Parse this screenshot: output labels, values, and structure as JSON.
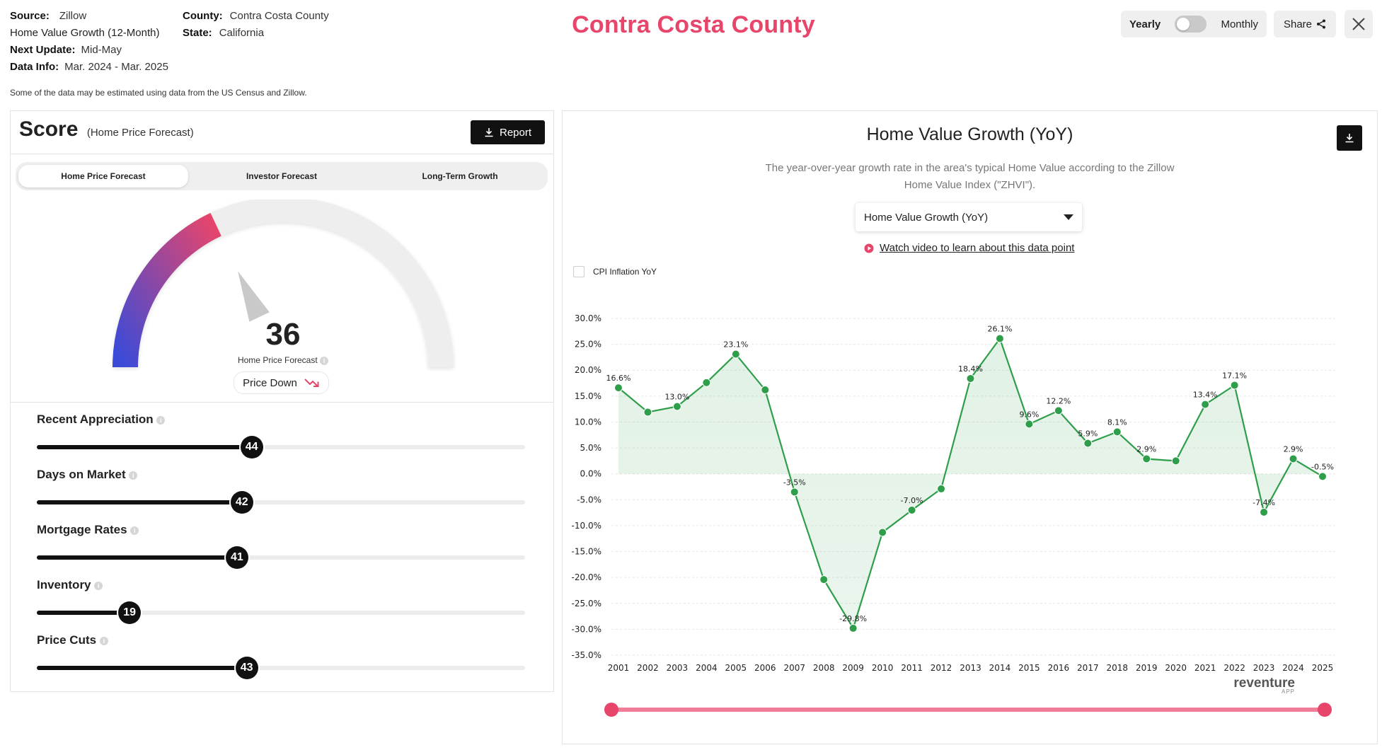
{
  "header": {
    "source_label": "Source:",
    "source_value": "Zillow",
    "metric_name": "Home Value Growth (12-Month)",
    "next_update_label": "Next Update:",
    "next_update_value": "Mid-May",
    "data_info_label": "Data Info:",
    "data_info_value": "Mar. 2024 - Mar. 2025",
    "county_label": "County:",
    "county_value": "Contra Costa County",
    "state_label": "State:",
    "state_value": "California",
    "title": "Contra Costa County",
    "disclaimer": "Some of the data may be estimated using data from the US Census and Zillow."
  },
  "controls": {
    "yearly_label": "Yearly",
    "monthly_label": "Monthly",
    "share_label": "Share",
    "icons": {
      "share": "share-icon",
      "close": "close-icon"
    }
  },
  "score_panel": {
    "title": "Score",
    "subtitle": "(Home Price Forecast)",
    "report_label": "Report",
    "tabs": [
      {
        "label": "Home Price Forecast",
        "active": true
      },
      {
        "label": "Investor Forecast",
        "active": false
      },
      {
        "label": "Long-Term Growth",
        "active": false
      }
    ],
    "gauge": {
      "value": "36",
      "caption": "Home Price Forecast",
      "status": "Price Down",
      "colors": {
        "start": "#3b4bd8",
        "end": "#e8456b",
        "track": "#eeeeee"
      }
    },
    "metrics": [
      {
        "label": "Recent Appreciation",
        "value": "44",
        "level": 0.44
      },
      {
        "label": "Days on Market",
        "value": "42",
        "level": 0.42
      },
      {
        "label": "Mortgage Rates",
        "value": "41",
        "level": 0.41
      },
      {
        "label": "Inventory",
        "value": "19",
        "level": 0.19
      },
      {
        "label": "Price Cuts",
        "value": "43",
        "level": 0.43
      }
    ]
  },
  "chart_panel": {
    "title": "Home Value Growth (YoY)",
    "description_line1": "The year-over-year growth rate in the area's typical Home Value according to the Zillow",
    "description_line2": "Home Value Index (\"ZHVI\").",
    "dropdown_value": "Home Value Growth (YoY)",
    "video_link": "Watch video to learn about this data point",
    "cpi_label": "CPI Inflation YoY",
    "brand": "reventure",
    "brand_sub": "APP",
    "accent_color": "#e8456b",
    "series_color": "#2e9e4a"
  },
  "chart_data": {
    "type": "line",
    "x": [
      "2001",
      "2002",
      "2003",
      "2004",
      "2005",
      "2006",
      "2007",
      "2008",
      "2009",
      "2010",
      "2011",
      "2012",
      "2013",
      "2014",
      "2015",
      "2016",
      "2017",
      "2018",
      "2019",
      "2020",
      "2021",
      "2022",
      "2023",
      "2024",
      "2025"
    ],
    "values": [
      16.6,
      11.9,
      13.0,
      17.6,
      23.1,
      16.2,
      -3.5,
      -20.4,
      -29.8,
      -11.3,
      -7.0,
      -2.9,
      18.4,
      26.1,
      9.6,
      12.2,
      5.9,
      8.1,
      2.9,
      2.5,
      13.4,
      17.1,
      -7.4,
      2.9,
      -0.5
    ],
    "labels": [
      {
        "x": "2001",
        "text": "16.6%"
      },
      {
        "x": "2003",
        "text": "13.0%"
      },
      {
        "x": "2005",
        "text": "23.1%"
      },
      {
        "x": "2007",
        "text": "-3.5%"
      },
      {
        "x": "2009",
        "text": "-29.8%"
      },
      {
        "x": "2011",
        "text": "-7.0%"
      },
      {
        "x": "2013",
        "text": "18.4%"
      },
      {
        "x": "2014",
        "text": "26.1%"
      },
      {
        "x": "2015",
        "text": "9.6%"
      },
      {
        "x": "2016",
        "text": "12.2%"
      },
      {
        "x": "2017",
        "text": "5.9%"
      },
      {
        "x": "2018",
        "text": "8.1%"
      },
      {
        "x": "2019",
        "text": "2.9%"
      },
      {
        "x": "2021",
        "text": "13.4%"
      },
      {
        "x": "2022",
        "text": "17.1%"
      },
      {
        "x": "2023",
        "text": "-7.4%"
      },
      {
        "x": "2024",
        "text": "2.9%"
      },
      {
        "x": "2025",
        "text": "-0.5%"
      }
    ],
    "yticks": [
      "30.0%",
      "25.0%",
      "20.0%",
      "15.0%",
      "10.0%",
      "5.0%",
      "0.0%",
      "-5.0%",
      "-10.0%",
      "-15.0%",
      "-20.0%",
      "-25.0%",
      "-30.0%",
      "-35.0%"
    ],
    "ylim": [
      -35,
      30
    ],
    "grid": true,
    "legend": "none"
  }
}
